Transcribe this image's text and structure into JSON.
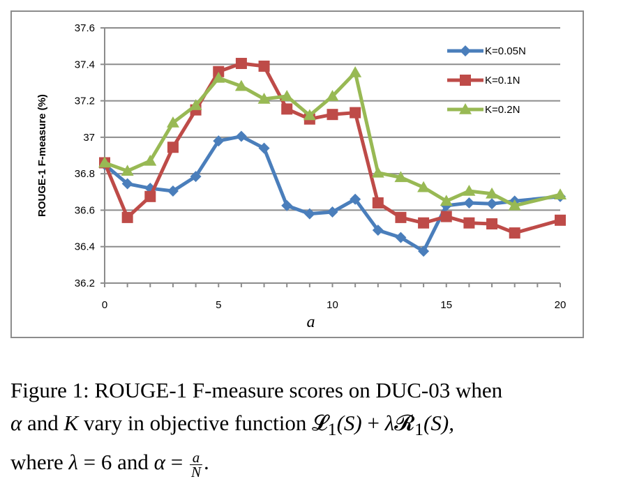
{
  "chart_data": {
    "type": "line",
    "title": "",
    "xlabel": "a",
    "ylabel": "ROUGE-1 F-measure (%)",
    "x": [
      0,
      1,
      2,
      3,
      4,
      5,
      6,
      7,
      8,
      9,
      10,
      11,
      12,
      13,
      14,
      15,
      16,
      17,
      18,
      20
    ],
    "xlim": [
      0,
      20
    ],
    "ylim": [
      36.2,
      37.6
    ],
    "x_ticks": [
      "0",
      "5",
      "10",
      "15",
      "20"
    ],
    "y_ticks": [
      "36.2",
      "36.4",
      "36.6",
      "36.8",
      "37",
      "37.2",
      "37.4",
      "37.6"
    ],
    "grid": "horizontal",
    "legend_position": "top-right",
    "series": [
      {
        "name": "K=0.05N",
        "color": "#4a7ebb",
        "marker": "diamond",
        "values": [
          36.85,
          36.745,
          36.72,
          36.705,
          36.785,
          36.98,
          37.005,
          36.94,
          36.625,
          36.58,
          36.59,
          36.66,
          36.49,
          36.45,
          36.375,
          36.625,
          36.64,
          36.635,
          36.65,
          36.675
        ]
      },
      {
        "name": "K=0.1N",
        "color": "#be4b48",
        "marker": "square",
        "values": [
          36.86,
          36.56,
          36.675,
          36.945,
          37.15,
          37.36,
          37.405,
          37.39,
          37.155,
          37.1,
          37.125,
          37.135,
          36.64,
          36.56,
          36.53,
          36.565,
          36.53,
          36.525,
          36.475,
          36.545
        ]
      },
      {
        "name": "K=0.2N",
        "color": "#98b954",
        "marker": "triangle",
        "values": [
          36.86,
          36.815,
          36.87,
          37.08,
          37.175,
          37.325,
          37.28,
          37.21,
          37.225,
          37.12,
          37.225,
          37.355,
          36.805,
          36.78,
          36.725,
          36.65,
          36.705,
          36.69,
          36.625,
          36.685
        ]
      }
    ]
  },
  "caption": {
    "line1": "Figure 1: ROUGE-1 F-measure scores on DUC-03 when",
    "alpha": "α",
    "line2_a": " and ",
    "K": "K",
    "line2_b": " vary in objective function ",
    "L1": "𝓛",
    "sub1": "1",
    "S1": "(S)",
    "plus": " + ",
    "lambda": "λ",
    "R1": "𝓡",
    "sub2": "1",
    "S2": "(S),",
    "line3_a": "where ",
    "lambda2": "λ",
    "eq6": " = 6 and ",
    "alpha2": "α",
    "eq": " = ",
    "frac_num": "a",
    "frac_den": "N",
    "period": "."
  }
}
